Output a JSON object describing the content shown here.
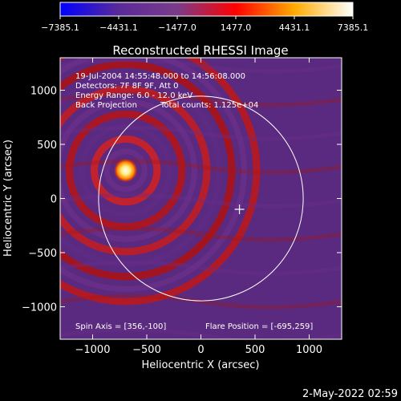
{
  "chart_data": {
    "type": "heatmap",
    "title": "Reconstructed RHESSI Image",
    "xlabel": "Heliocentric X (arcsec)",
    "ylabel": "Heliocentric Y (arcsec)",
    "xlim": [
      -1300,
      1300
    ],
    "ylim": [
      -1300,
      1300
    ],
    "x_ticks": [
      -1000,
      -500,
      0,
      500,
      1000
    ],
    "x_tick_labels": [
      "−1000",
      "−500",
      "0",
      "500",
      "1000"
    ],
    "y_ticks": [
      -1000,
      -500,
      0,
      500,
      1000
    ],
    "y_tick_labels": [
      "−1000",
      "−500",
      "0",
      "500",
      "1000"
    ],
    "colorbar": {
      "min": -7385.1,
      "max": 7385.1,
      "ticks": [
        -7385.1,
        -4431.1,
        -1477.0,
        1477.0,
        4431.1,
        7385.1
      ],
      "tick_labels": [
        "−7385.1",
        "−4431.1",
        "−1477.0",
        "1477.0",
        "4431.1",
        "7385.1"
      ],
      "stops": [
        "#0000ff",
        "#5a2a9a",
        "#7a3b8a",
        "#ff0000",
        "#ffaa00",
        "#ffffff"
      ]
    },
    "annotations": [
      "19-Jul-2004 14:55:48.000 to 14:56:08.000",
      "Detectors: 7F 8F 9F, Att 0",
      "Energy Range: 6.0 - 12.0 keV",
      "Back Projection",
      "Total counts: 1.125e+04"
    ],
    "spin_axis_label": "Spin Axis = [356,-100]",
    "flare_position_label": "Flare Position = [-695,259]",
    "flare_position": [
      -695,
      259
    ],
    "spin_axis": [
      356,
      -100
    ],
    "solar_disk_radius": 945,
    "colors": {
      "background": "#000000",
      "purple": "#7a3b8a",
      "red": "#d81818",
      "orange": "#ff7a00",
      "white": "#ffffff"
    }
  },
  "footer": {
    "timestamp": "2-May-2022 02:59"
  }
}
